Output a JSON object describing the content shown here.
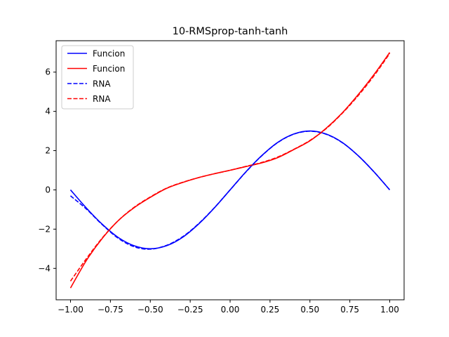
{
  "chart_data": {
    "type": "line",
    "title": "10-RMSprop-tanh-tanh",
    "xlabel": "",
    "ylabel": "",
    "xlim": [
      -1.09,
      1.09
    ],
    "ylim": [
      -5.6,
      7.6
    ],
    "xticks": [
      -1.0,
      -0.75,
      -0.5,
      -0.25,
      0.0,
      0.25,
      0.5,
      0.75,
      1.0
    ],
    "xtick_labels": [
      "−1.00",
      "−0.75",
      "−0.50",
      "−0.25",
      "0.00",
      "0.25",
      "0.50",
      "0.75",
      "1.00"
    ],
    "yticks": [
      -4,
      -2,
      0,
      2,
      4,
      6
    ],
    "ytick_labels": [
      "−4",
      "−2",
      "0",
      "2",
      "4",
      "6"
    ],
    "grid": false,
    "legend_position": "upper-left",
    "series": [
      {
        "name": "Funcion",
        "color": "#0000ff",
        "style": "solid",
        "x": [
          -1.0,
          -0.9,
          -0.8,
          -0.7,
          -0.6,
          -0.5,
          -0.4,
          -0.3,
          -0.2,
          -0.1,
          0.0,
          0.1,
          0.2,
          0.3,
          0.4,
          0.5,
          0.6,
          0.7,
          0.8,
          0.9,
          1.0
        ],
        "y": [
          0.0,
          -0.93,
          -1.76,
          -2.43,
          -2.85,
          -3.0,
          -2.85,
          -2.43,
          -1.76,
          -0.93,
          0.0,
          0.93,
          1.76,
          2.43,
          2.85,
          3.0,
          2.85,
          2.43,
          1.76,
          0.93,
          0.0
        ]
      },
      {
        "name": "Funcion",
        "color": "#ff0000",
        "style": "solid",
        "x": [
          -1.0,
          -0.9,
          -0.8,
          -0.7,
          -0.6,
          -0.5,
          -0.4,
          -0.3,
          -0.2,
          -0.1,
          0.0,
          0.1,
          0.2,
          0.3,
          0.4,
          0.5,
          0.6,
          0.7,
          0.8,
          0.9,
          1.0
        ],
        "y": [
          -5.0,
          -3.59,
          -2.46,
          -1.56,
          -0.9,
          -0.38,
          0.07,
          0.37,
          0.62,
          0.82,
          1.0,
          1.19,
          1.38,
          1.65,
          2.06,
          2.5,
          3.13,
          3.9,
          4.83,
          5.86,
          7.0
        ]
      },
      {
        "name": "RNA",
        "color": "#0000ff",
        "style": "dashed",
        "x": [
          -1.0,
          -0.9,
          -0.8,
          -0.7,
          -0.6,
          -0.5,
          -0.4,
          -0.3,
          -0.2,
          -0.1,
          0.0,
          0.1,
          0.2,
          0.3,
          0.4,
          0.5,
          0.6,
          0.7,
          0.8,
          0.9,
          1.0
        ],
        "y": [
          -0.3,
          -0.98,
          -1.78,
          -2.47,
          -2.9,
          -3.02,
          -2.83,
          -2.4,
          -1.74,
          -0.92,
          0.0,
          0.92,
          1.75,
          2.42,
          2.84,
          2.99,
          2.84,
          2.42,
          1.76,
          0.93,
          0.0
        ]
      },
      {
        "name": "RNA",
        "color": "#ff0000",
        "style": "dashed",
        "x": [
          -1.0,
          -0.9,
          -0.8,
          -0.7,
          -0.6,
          -0.5,
          -0.4,
          -0.3,
          -0.2,
          -0.1,
          0.0,
          0.1,
          0.2,
          0.3,
          0.4,
          0.5,
          0.6,
          0.7,
          0.8,
          0.9,
          1.0
        ],
        "y": [
          -4.65,
          -3.5,
          -2.44,
          -1.56,
          -0.88,
          -0.36,
          0.08,
          0.38,
          0.62,
          0.82,
          1.0,
          1.2,
          1.4,
          1.68,
          2.07,
          2.52,
          3.11,
          3.88,
          4.78,
          5.8,
          6.95
        ]
      }
    ]
  }
}
